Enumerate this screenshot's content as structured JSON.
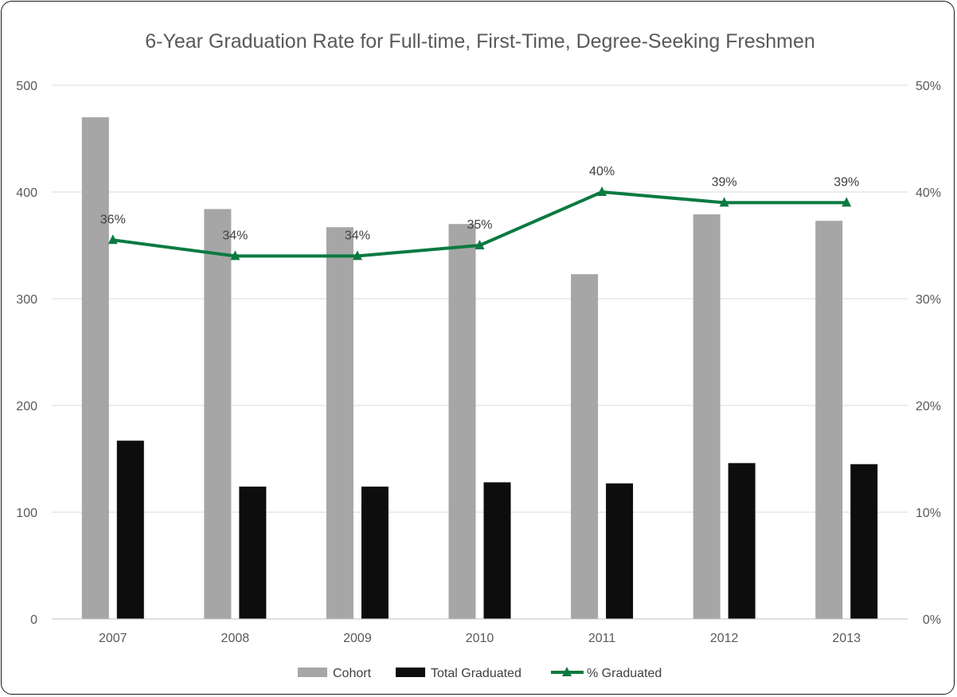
{
  "chart_data": {
    "type": "bar",
    "title": "6-Year Graduation Rate for Full-time, First-Time, Degree-Seeking Freshmen",
    "categories": [
      "2007",
      "2008",
      "2009",
      "2010",
      "2011",
      "2012",
      "2013"
    ],
    "series": [
      {
        "name": "Cohort",
        "type": "bar",
        "axis": "left",
        "color": "#a6a6a6",
        "values": [
          470,
          384,
          367,
          370,
          323,
          379,
          373
        ]
      },
      {
        "name": "Total Graduated",
        "type": "bar",
        "axis": "left",
        "color": "#0d0d0d",
        "values": [
          167,
          124,
          124,
          128,
          127,
          146,
          145
        ]
      },
      {
        "name": "% Graduated",
        "type": "line",
        "axis": "right",
        "color": "#0a7a40",
        "marker": "triangle",
        "values": [
          35.5,
          34,
          34,
          35,
          40,
          39,
          39
        ],
        "labels": [
          "36%",
          "34%",
          "34%",
          "35%",
          "40%",
          "39%",
          "39%"
        ]
      }
    ],
    "ylim_left": [
      0,
      500
    ],
    "yticks_left": [
      "0",
      "100",
      "200",
      "300",
      "400",
      "500"
    ],
    "ylim_right": [
      0,
      50
    ],
    "yticks_right": [
      "0%",
      "10%",
      "20%",
      "30%",
      "40%",
      "50%"
    ],
    "grid": true,
    "legend_position": "bottom"
  }
}
